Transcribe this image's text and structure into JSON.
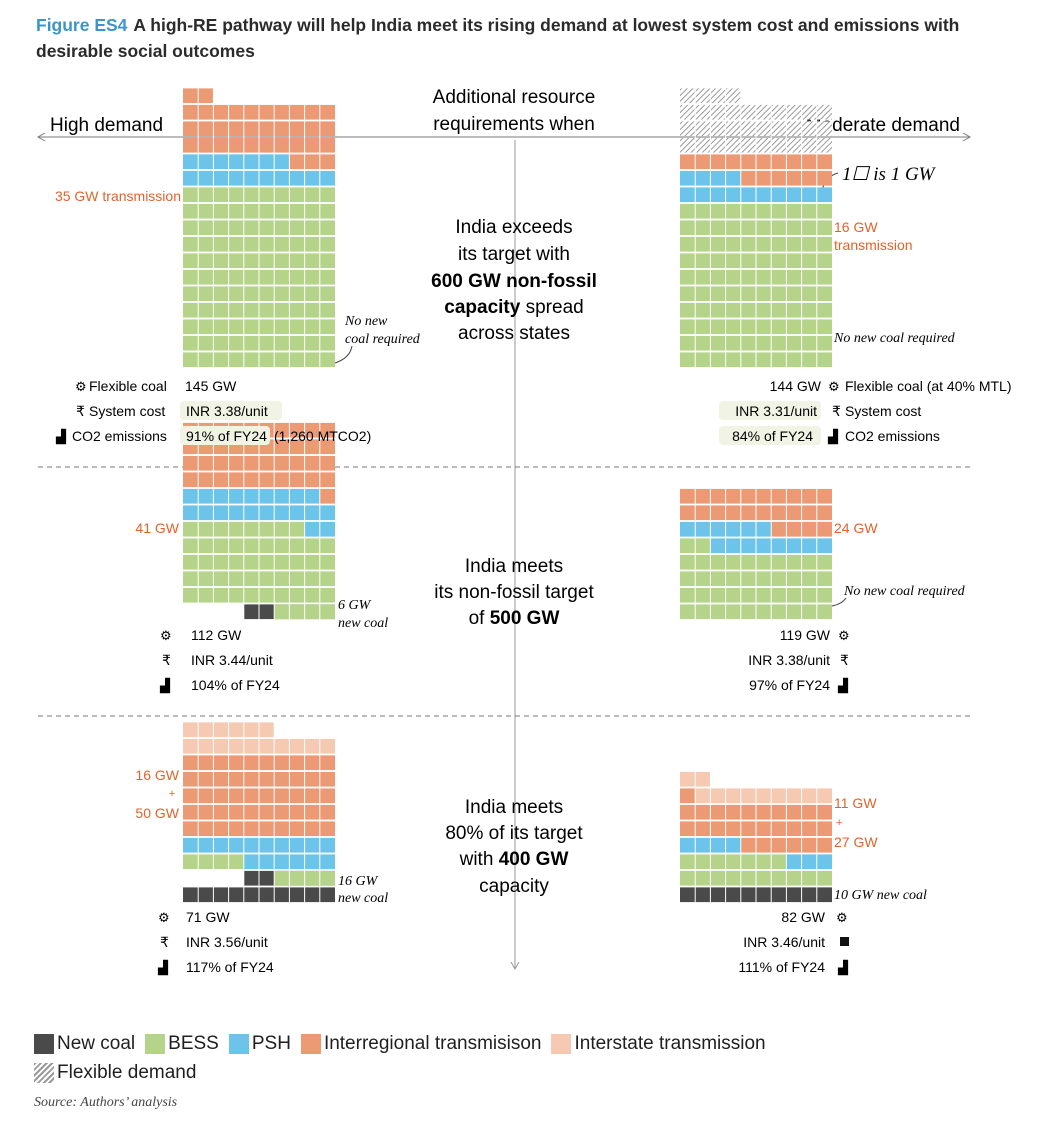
{
  "figure": {
    "label": "Figure ES4",
    "title": "A high-RE pathway will help India meet its rising demand at lowest system cost and emissions with desirable social outcomes"
  },
  "header": {
    "left": "High demand",
    "center_line1": "Additional resource",
    "center_line2": "requirements when",
    "right": "Moderate demand",
    "unit_note": "1☐ is 1 GW"
  },
  "colors": {
    "new_coal": "#4a4a4a",
    "bess": "#b5d48a",
    "psh": "#6cc4ea",
    "interregional": "#ec9a74",
    "interstate": "#f5c9b2",
    "flexible_demand": "#bdbdbd",
    "highlight": "#f1f4e4",
    "label_orange": "#e0632c"
  },
  "chart_data": [
    {
      "type": "waffle",
      "scenario": "India exceeds its target with 600 GW non-fossil capacity spread across states",
      "demand": "High demand",
      "unit": "GW",
      "components": {
        "Interregional transmission": 35,
        "PSH": 17,
        "BESS": 110,
        "New coal": 0
      },
      "labels": {
        "transmission": "35 GW transmission",
        "coal_note_1": "No new",
        "coal_note_2": "coal required"
      },
      "metrics": {
        "flexible_coal": "145 GW",
        "system_cost": "INR 3.38/unit",
        "co2_pct": "91% of FY24",
        "co2_abs": "(1,260 MTCO2)"
      }
    },
    {
      "type": "waffle",
      "scenario": "India exceeds its target with 600 GW non-fossil capacity spread across states",
      "demand": "Moderate demand",
      "unit": "GW",
      "components": {
        "Flexible demand": 34,
        "Interregional transmission": 16,
        "PSH": 14,
        "BESS": 100,
        "New coal": 0
      },
      "labels": {
        "transmission_1": "16 GW",
        "transmission_2": "transmission",
        "coal_note": "No new coal required"
      },
      "metrics": {
        "flexible_coal": "144 GW",
        "system_cost": "INR 3.31/unit",
        "co2_pct": "84% of FY24"
      }
    },
    {
      "type": "waffle",
      "scenario": "India meets its non-fossil target of 500 GW",
      "demand": "High demand",
      "unit": "GW",
      "components": {
        "Interregional transmission": 41,
        "PSH": 21,
        "BESS": 52,
        "New coal": 6
      },
      "labels": {
        "transmission": "41 GW",
        "coal_1": "6 GW",
        "coal_2": "new coal"
      },
      "metrics": {
        "flexible_coal": "112 GW",
        "system_cost": "INR 3.44/unit",
        "co2_pct": "104% of FY24"
      }
    },
    {
      "type": "waffle",
      "scenario": "India meets its non-fossil target of 500 GW",
      "demand": "Moderate demand",
      "unit": "GW",
      "components": {
        "Interregional transmission": 24,
        "PSH": 14,
        "BESS": 42,
        "New coal": 0
      },
      "labels": {
        "transmission": "24 GW",
        "coal_note": "No new coal required"
      },
      "metrics": {
        "flexible_coal": "119 GW",
        "system_cost": "INR 3.38/unit",
        "co2_pct": "97% of FY24"
      }
    },
    {
      "type": "waffle",
      "scenario": "India meets 80% of its target with 400 GW capacity",
      "demand": "High demand",
      "unit": "GW",
      "components": {
        "Interstate transmission": 16,
        "Interregional transmission": 50,
        "PSH": 16,
        "BESS": 8,
        "New coal": 16
      },
      "labels": {
        "interstate": "16 GW",
        "plus": "+",
        "interregional": "50 GW",
        "coal_1": "16 GW",
        "coal_2": "new coal"
      },
      "metrics": {
        "flexible_coal": "71 GW",
        "system_cost": "INR 3.56/unit",
        "co2_pct": "117% of FY24"
      }
    },
    {
      "type": "waffle",
      "scenario": "India meets 80% of its target with 400 GW capacity",
      "demand": "Moderate demand",
      "unit": "GW",
      "components": {
        "Interstate transmission": 11,
        "Interregional transmission": 27,
        "PSH": 7,
        "BESS": 17,
        "New coal": 10
      },
      "labels": {
        "interstate": "11 GW",
        "plus": "+",
        "interregional": "27 GW",
        "coal": "10 GW new coal"
      },
      "metrics": {
        "flexible_coal": "82 GW",
        "system_cost": "INR 3.46/unit",
        "co2_pct": "111% of FY24"
      }
    }
  ],
  "scenarios": [
    {
      "l1": "India exceeds",
      "l2": "its target with",
      "l3": "600 GW non-fossil",
      "l4a": "capacity",
      "l4b": " spread",
      "l5": "across states"
    },
    {
      "l1": "India meets",
      "l2": "its non-fossil target",
      "l3a": "of ",
      "l3b": "500 GW"
    },
    {
      "l1": "India meets",
      "l2": "80% of its target",
      "l3a": "with ",
      "l3b": "400 GW",
      "l4": "capacity"
    }
  ],
  "metric_labels": {
    "flexible_coal": "Flexible coal",
    "flexible_coal_right": "Flexible coal (at 40% MTL)",
    "system_cost": "System cost",
    "co2": "CO2 emissions"
  },
  "legend": [
    {
      "label": "New coal",
      "key": "new_coal"
    },
    {
      "label": "BESS",
      "key": "bess"
    },
    {
      "label": "PSH",
      "key": "psh"
    },
    {
      "label": "Interregional transmisison",
      "key": "interregional"
    },
    {
      "label": "Interstate transmission",
      "key": "interstate"
    },
    {
      "label": "Flexible demand",
      "key": "flexible_demand"
    }
  ],
  "source": "Source: Authors’ analysis"
}
